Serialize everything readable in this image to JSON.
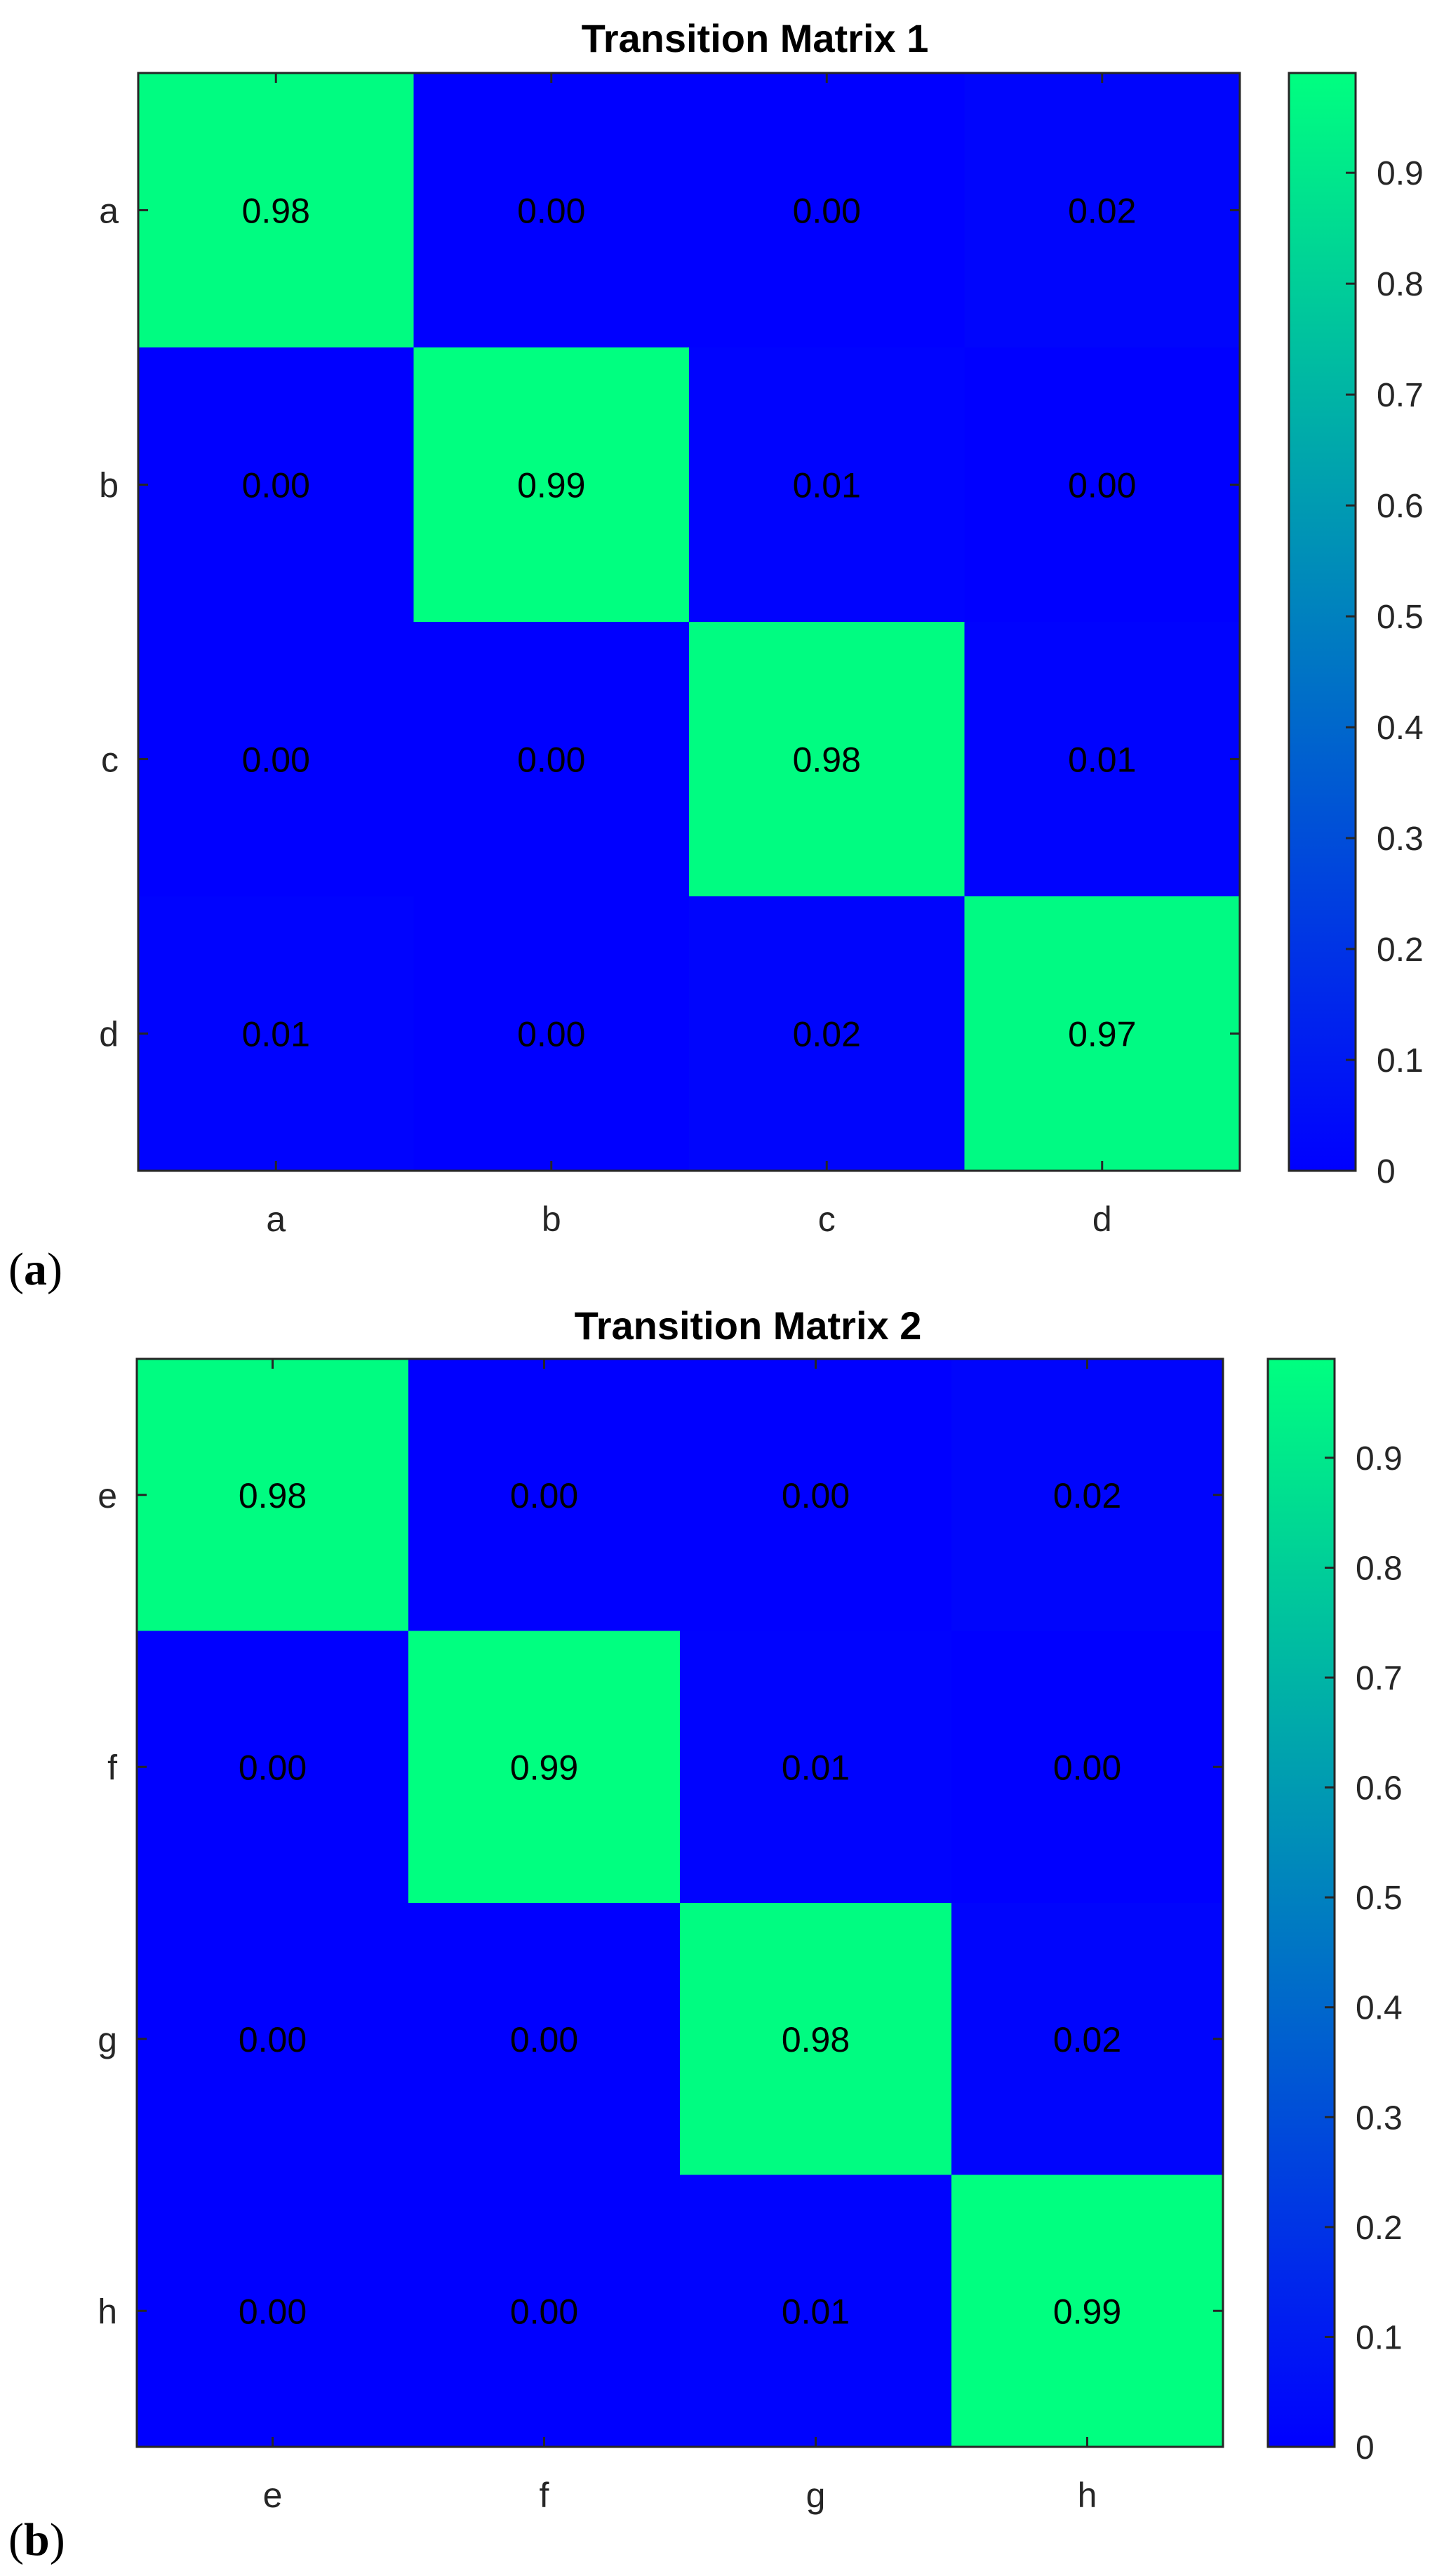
{
  "chart_data": [
    {
      "type": "heatmap",
      "panel_label": "a",
      "title": "Transition Matrix 1",
      "row_labels": [
        "a",
        "b",
        "c",
        "d"
      ],
      "col_labels": [
        "a",
        "b",
        "c",
        "d"
      ],
      "values": [
        [
          0.98,
          0.0,
          0.0,
          0.02
        ],
        [
          0.0,
          0.99,
          0.01,
          0.0
        ],
        [
          0.0,
          0.0,
          0.98,
          0.01
        ],
        [
          0.01,
          0.0,
          0.02,
          0.97
        ]
      ],
      "value_labels": [
        [
          "0.98",
          "0.00",
          "0.00",
          "0.02"
        ],
        [
          "0.00",
          "0.99",
          "0.01",
          "0.00"
        ],
        [
          "0.00",
          "0.00",
          "0.98",
          "0.01"
        ],
        [
          "0.01",
          "0.00",
          "0.02",
          "0.97"
        ]
      ],
      "colorbar": {
        "range": [
          0,
          0.99
        ],
        "ticks": [
          0,
          0.1,
          0.2,
          0.3,
          0.4,
          0.5,
          0.6,
          0.7,
          0.8,
          0.9
        ],
        "tick_labels": [
          "0",
          "0.1",
          "0.2",
          "0.3",
          "0.4",
          "0.5",
          "0.6",
          "0.7",
          "0.8",
          "0.9"
        ],
        "color_low": "#0000FF",
        "color_high": "#00FF80"
      }
    },
    {
      "type": "heatmap",
      "panel_label": "b",
      "title": "Transition Matrix 2",
      "row_labels": [
        "e",
        "f",
        "g",
        "h"
      ],
      "col_labels": [
        "e",
        "f",
        "g",
        "h"
      ],
      "values": [
        [
          0.98,
          0.0,
          0.0,
          0.02
        ],
        [
          0.0,
          0.99,
          0.01,
          0.0
        ],
        [
          0.0,
          0.0,
          0.98,
          0.02
        ],
        [
          0.0,
          0.0,
          0.01,
          0.99
        ]
      ],
      "value_labels": [
        [
          "0.98",
          "0.00",
          "0.00",
          "0.02"
        ],
        [
          "0.00",
          "0.99",
          "0.01",
          "0.00"
        ],
        [
          "0.00",
          "0.00",
          "0.98",
          "0.02"
        ],
        [
          "0.00",
          "0.00",
          "0.01",
          "0.99"
        ]
      ],
      "colorbar": {
        "range": [
          0,
          0.99
        ],
        "ticks": [
          0,
          0.1,
          0.2,
          0.3,
          0.4,
          0.5,
          0.6,
          0.7,
          0.8,
          0.9
        ],
        "tick_labels": [
          "0",
          "0.1",
          "0.2",
          "0.3",
          "0.4",
          "0.5",
          "0.6",
          "0.7",
          "0.8",
          "0.9"
        ],
        "color_low": "#0000FF",
        "color_high": "#00FF80"
      }
    }
  ]
}
